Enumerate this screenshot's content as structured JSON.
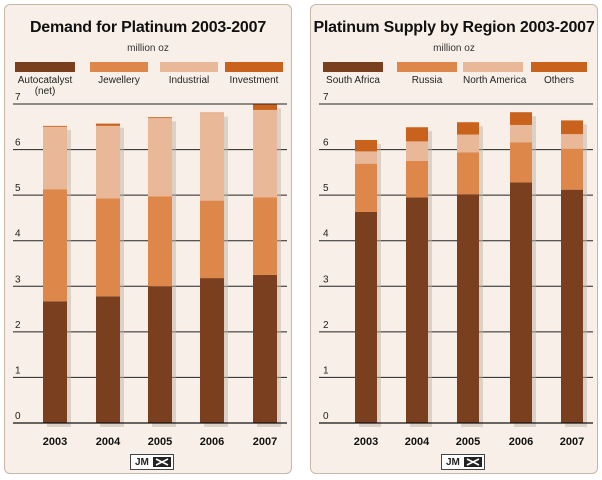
{
  "colors": {
    "autocatalyst": "#7a3f1f",
    "jewellery": "#dd884a",
    "industrial": "#e8b898",
    "investment": "#c8621c",
    "south_africa": "#7a3f1f",
    "russia": "#dd884a",
    "north_america": "#e8b898",
    "others": "#c8621c"
  },
  "logo_text": "JM",
  "chart_data": [
    {
      "type": "bar",
      "stacked": true,
      "title": "Demand for Platinum 2003-2007",
      "unit": "million oz",
      "categories": [
        "2003",
        "2004",
        "2005",
        "2006",
        "2007"
      ],
      "yticks": [
        "0",
        "1",
        "2",
        "3",
        "4",
        "5",
        "6",
        "7"
      ],
      "ylim": [
        0,
        7
      ],
      "grid": true,
      "legend_position": "top",
      "series": [
        {
          "name": "Autocatalyst (net)",
          "values": [
            2.67,
            2.78,
            3.0,
            3.18,
            3.25
          ]
        },
        {
          "name": "Jewellery",
          "values": [
            2.46,
            2.15,
            1.97,
            1.7,
            1.7
          ]
        },
        {
          "name": "Industrial",
          "values": [
            1.37,
            1.59,
            1.72,
            1.92,
            1.92
          ]
        },
        {
          "name": "Investment",
          "values": [
            0.02,
            0.05,
            0.02,
            0.01,
            0.12
          ]
        }
      ]
    },
    {
      "type": "bar",
      "stacked": true,
      "title": "Platinum Supply by Region 2003-2007",
      "unit": "million oz",
      "categories": [
        "2003",
        "2004",
        "2005",
        "2006",
        "2007"
      ],
      "yticks": [
        "0",
        "1",
        "2",
        "3",
        "4",
        "5",
        "6",
        "7"
      ],
      "ylim": [
        0,
        7
      ],
      "grid": true,
      "legend_position": "top",
      "series": [
        {
          "name": "South Africa",
          "values": [
            4.63,
            4.95,
            5.02,
            5.28,
            5.12
          ]
        },
        {
          "name": "Russia",
          "values": [
            1.06,
            0.8,
            0.92,
            0.88,
            0.9
          ]
        },
        {
          "name": "North America",
          "values": [
            0.27,
            0.43,
            0.39,
            0.38,
            0.32
          ]
        },
        {
          "name": "Others",
          "values": [
            0.25,
            0.31,
            0.27,
            0.28,
            0.3
          ]
        }
      ]
    }
  ]
}
